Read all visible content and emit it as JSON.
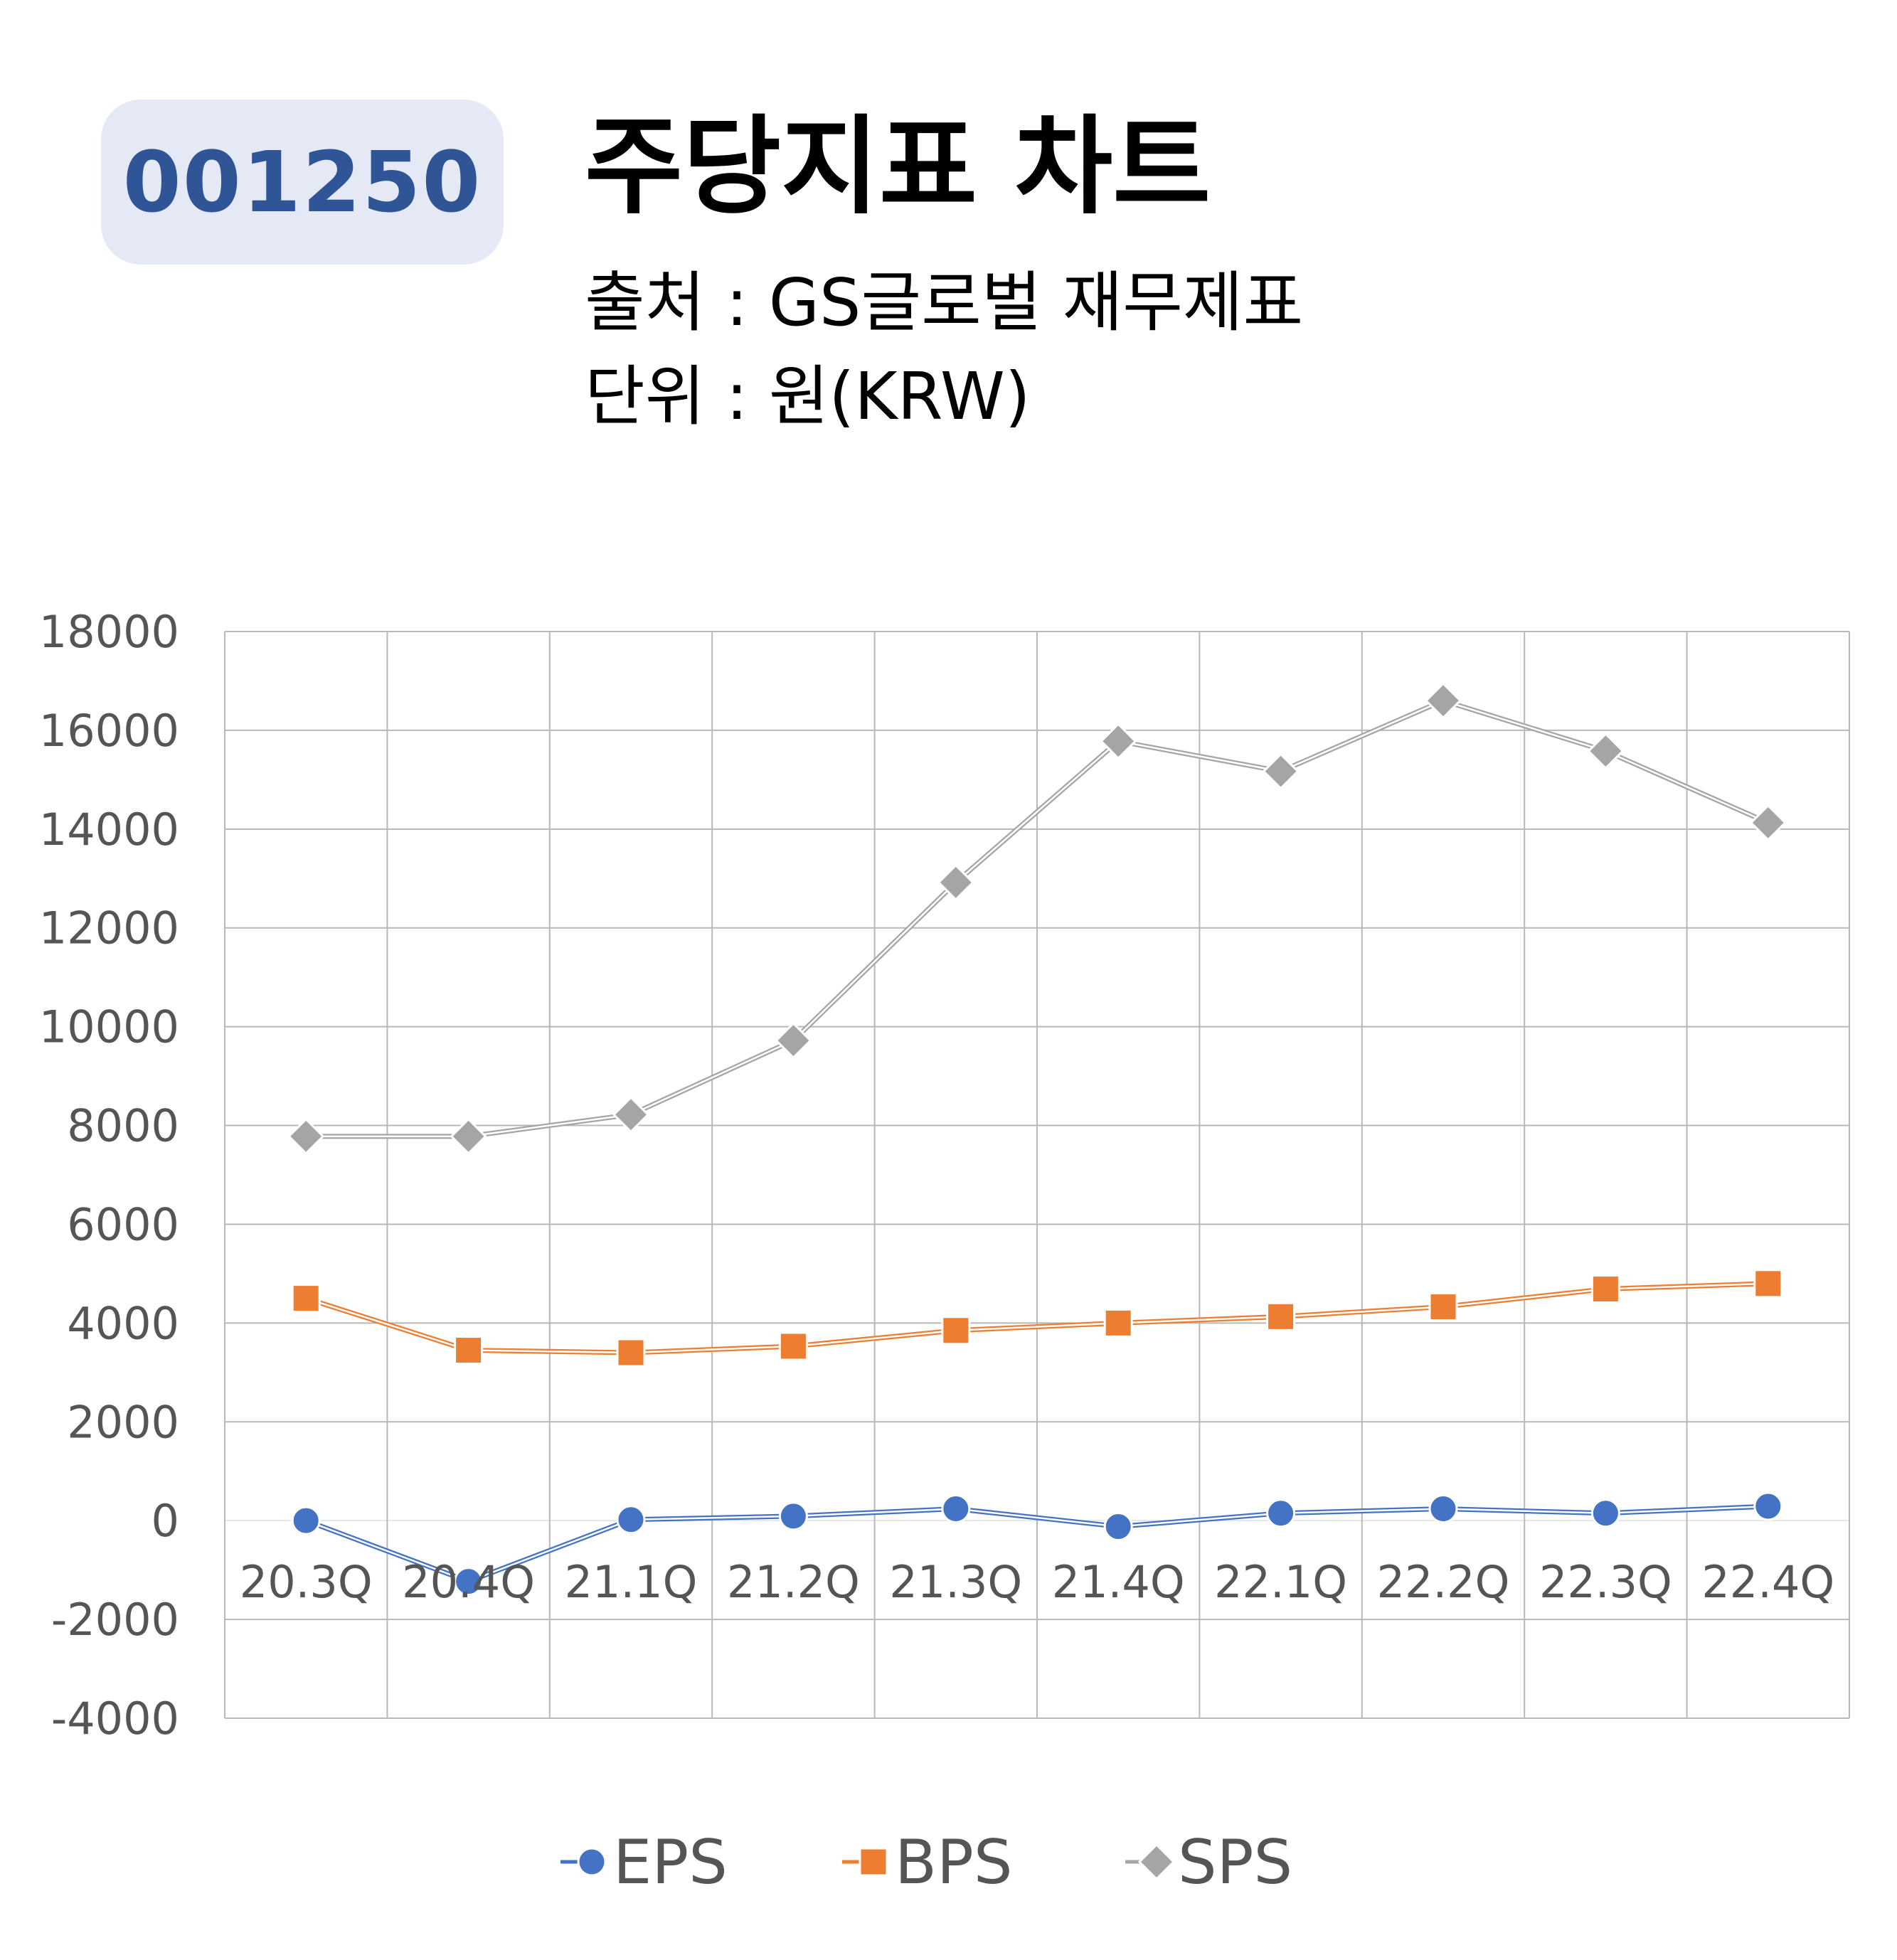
{
  "header": {
    "code": "001250",
    "title": "주당지표 차트",
    "source": "출처 : GS글로벌 재무제표",
    "unit": "단위 : 원(KRW)"
  },
  "colors": {
    "badge_bg": "#e4e9f5",
    "badge_text": "#2f5597",
    "eps": "#4472c4",
    "bps": "#ed7d31",
    "sps": "#a5a5a5",
    "grid": "#b8b8b8"
  },
  "chart_data": {
    "type": "line",
    "title": "",
    "xlabel": "",
    "ylabel": "",
    "ylim": [
      -4000,
      18000
    ],
    "yticks": [
      "18000",
      "16000",
      "14000",
      "12000",
      "10000",
      "8000",
      "6000",
      "4000",
      "2000",
      "0",
      "-2000",
      "-4000"
    ],
    "categories": [
      "20.3Q",
      "20.4Q",
      "21.1Q",
      "21.2Q",
      "21.3Q",
      "21.4Q",
      "22.1Q",
      "22.2Q",
      "22.3Q",
      "22.4Q"
    ],
    "grid": true,
    "legend_position": "bottom",
    "series": [
      {
        "name": "EPS",
        "marker": "circle",
        "values": [
          0,
          -1230,
          20,
          90,
          240,
          -120,
          150,
          240,
          150,
          290
        ]
      },
      {
        "name": "BPS",
        "marker": "square",
        "values": [
          4500,
          3450,
          3400,
          3530,
          3850,
          4000,
          4130,
          4330,
          4690,
          4800
        ]
      },
      {
        "name": "SPS",
        "marker": "diamond",
        "values": [
          7780,
          7780,
          8220,
          9720,
          12920,
          15780,
          15170,
          16600,
          15580,
          14130
        ]
      }
    ]
  }
}
